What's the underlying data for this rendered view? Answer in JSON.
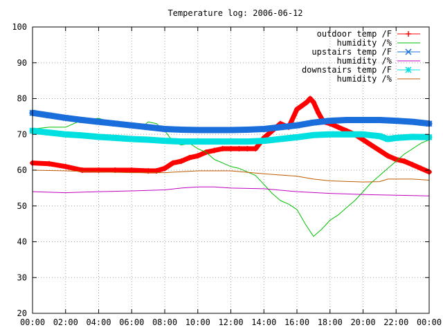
{
  "chart_data": {
    "type": "line",
    "title": "Temperature log: 2006-06-12",
    "xlabel": "",
    "ylabel": "",
    "x_ticks": [
      "00:00",
      "02:00",
      "04:00",
      "06:00",
      "08:00",
      "10:00",
      "12:00",
      "14:00",
      "16:00",
      "18:00",
      "20:00",
      "22:00",
      "00:00"
    ],
    "x_range_hours": [
      0,
      24
    ],
    "ylim": [
      20,
      100
    ],
    "y_ticks": [
      20,
      30,
      40,
      50,
      60,
      70,
      80,
      90,
      100
    ],
    "grid": true,
    "legend_position": "top-right",
    "series": [
      {
        "name": "outdoor temp /F",
        "color": "#ff0000",
        "marker": "plus",
        "line_width": 7,
        "x": [
          0,
          1,
          2,
          3,
          4,
          5,
          6,
          7,
          7.5,
          8,
          8.5,
          9,
          9.5,
          10,
          10.5,
          11,
          11.5,
          12,
          12.5,
          13,
          13.5,
          14,
          14.5,
          15,
          15.5,
          16,
          16.3,
          16.6,
          16.8,
          17,
          17.3,
          17.6,
          18,
          18.5,
          19,
          19.5,
          20,
          20.5,
          21,
          21.5,
          22,
          22.5,
          23,
          23.5,
          24
        ],
        "y": [
          62,
          61.8,
          61,
          60,
          60,
          60,
          60,
          59.8,
          59.8,
          60.5,
          62,
          62.5,
          63.5,
          64,
          65,
          65.5,
          66,
          66,
          66,
          66,
          66,
          69,
          71,
          73,
          72,
          77,
          78,
          79,
          80,
          79,
          76,
          73.5,
          73,
          72,
          71,
          70,
          68.5,
          67,
          65.5,
          64,
          63,
          62.5,
          61.5,
          60.5,
          59.5
        ]
      },
      {
        "name": "humidity /%",
        "color": "#00c000",
        "marker": "none",
        "line_width": 1,
        "x": [
          0,
          1,
          2,
          3,
          4,
          5,
          6,
          6.5,
          7,
          7.5,
          8,
          8.5,
          9,
          9.5,
          10,
          10.5,
          11,
          11.5,
          12,
          12.5,
          13,
          13.5,
          14,
          14.5,
          15,
          15.5,
          16,
          16.5,
          17,
          17.5,
          18,
          18.5,
          19,
          19.5,
          20,
          20.5,
          21,
          21.5,
          22,
          22.5,
          23,
          23.5,
          24
        ],
        "y": [
          71.5,
          72,
          72,
          74,
          74.5,
          73,
          72,
          71.5,
          73.5,
          73,
          71,
          68,
          67,
          67.5,
          66,
          65,
          63,
          62,
          61,
          60.5,
          59.5,
          58.5,
          56,
          53.5,
          51.5,
          50.5,
          49,
          45,
          41.5,
          43.5,
          46,
          47.5,
          49.5,
          51.5,
          54,
          56.5,
          58.5,
          60.5,
          62.5,
          64.5,
          66,
          67.5,
          68.5
        ]
      },
      {
        "name": "upstairs temp /F",
        "color": "#1a6edc",
        "marker": "cross",
        "line_width": 9,
        "x": [
          0,
          1,
          2,
          3,
          4,
          5,
          6,
          7,
          8,
          9,
          10,
          11,
          12,
          13,
          14,
          15,
          16,
          17,
          18,
          19,
          20,
          21,
          22,
          23,
          24
        ],
        "y": [
          76,
          75.3,
          74.6,
          74,
          73.5,
          73,
          72.5,
          72,
          71.5,
          71.3,
          71.2,
          71.2,
          71.2,
          71.3,
          71.5,
          72,
          72.5,
          73.3,
          73.8,
          74,
          74,
          74,
          73.8,
          73.5,
          73
        ]
      },
      {
        "name": "humidity /%",
        "color": "#c000c0",
        "marker": "none",
        "line_width": 1,
        "x": [
          0,
          2,
          4,
          6,
          8,
          9,
          10,
          11,
          12,
          14,
          16,
          18,
          20,
          22,
          24
        ],
        "y": [
          54,
          53.7,
          54,
          54.2,
          54.5,
          55,
          55.3,
          55.3,
          55,
          54.8,
          54,
          53.5,
          53.2,
          53,
          52.8
        ]
      },
      {
        "name": "downstairs temp /F",
        "color": "#00e0e0",
        "marker": "star",
        "line_width": 9,
        "x": [
          0,
          1,
          2,
          3,
          4,
          5,
          6,
          7,
          8,
          9,
          10,
          11,
          12,
          13,
          14,
          15,
          16,
          17,
          18,
          19,
          20,
          21,
          21.5,
          22,
          23,
          24
        ],
        "y": [
          71,
          70.5,
          70,
          69.7,
          69.3,
          69,
          68.7,
          68.5,
          68.2,
          68,
          68,
          68,
          68,
          68,
          68.2,
          68.7,
          69.2,
          69.8,
          70,
          70,
          70,
          69.5,
          68.7,
          69,
          69.3,
          69.2
        ]
      },
      {
        "name": "humidity /%",
        "color": "#c05a00",
        "marker": "none",
        "line_width": 1,
        "x": [
          0,
          2,
          4,
          6,
          8,
          10,
          12,
          14,
          16,
          17,
          18,
          20,
          21,
          21.5,
          22,
          23,
          24
        ],
        "y": [
          60,
          59.8,
          59.5,
          59.3,
          59.3,
          59.8,
          59.8,
          59,
          58.3,
          57.5,
          57,
          56.7,
          56.8,
          57.5,
          57.5,
          57.5,
          57.2
        ]
      }
    ]
  }
}
